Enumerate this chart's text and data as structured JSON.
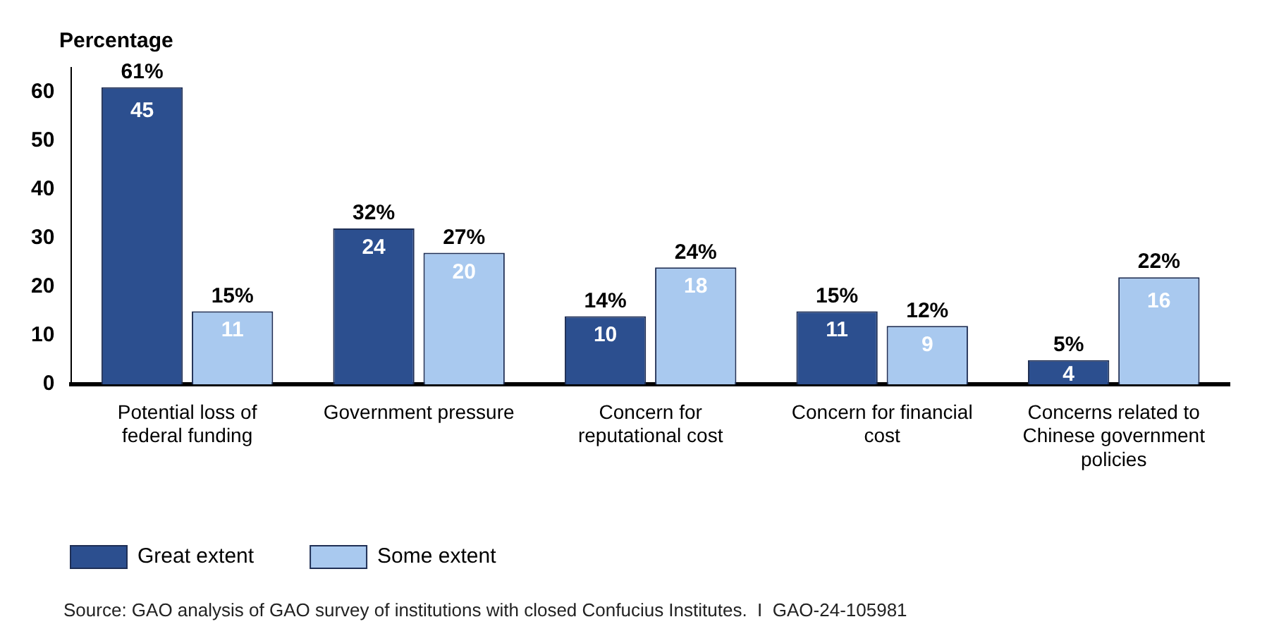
{
  "chart_data": {
    "type": "bar",
    "ylabel": "Percentage",
    "categories": [
      "Potential loss of federal funding",
      "Government pressure",
      "Concern for reputational cost",
      "Concern for financial cost",
      "Concerns related to Chinese government policies"
    ],
    "series": [
      {
        "name": "Great extent",
        "color": "#2c4f8f",
        "values": [
          61,
          32,
          14,
          15,
          5
        ],
        "value_labels": [
          "61%",
          "32%",
          "14%",
          "15%",
          "5%"
        ]
      },
      {
        "name": "Some extent",
        "color": "#a9c9ef",
        "values": [
          15,
          27,
          24,
          12,
          22
        ],
        "value_labels": [
          "15%",
          "27%",
          "24%",
          "12%",
          "22%"
        ]
      }
    ],
    "ylim": [
      0,
      65
    ],
    "yticks": [
      0,
      10,
      20,
      30,
      40,
      50,
      60
    ],
    "grid": false,
    "legend": "bottom left",
    "annotations": [
      {
        "text": "45",
        "x": "Potential loss of federal funding",
        "y": 56
      },
      {
        "text": "11",
        "x": "Potential loss of federal funding",
        "y": 11
      },
      {
        "text": "24",
        "x": "Government pressure",
        "y": 28
      },
      {
        "text": "20",
        "x": "Government pressure",
        "y": 23
      },
      {
        "text": "10",
        "x": "Concern for reputational cost",
        "y": 10
      },
      {
        "text": "18",
        "x": "Concern for reputational cost",
        "y": 20
      },
      {
        "text": "11",
        "x": "Concern for financial cost",
        "y": 11
      },
      {
        "text": "9",
        "x": "Concern for financial cost",
        "y": 8
      },
      {
        "text": "4",
        "x": "Concerns related to Chinese government policies",
        "y": 2
      },
      {
        "text": "16",
        "x": "Concerns related to Chinese government policies",
        "y": 17
      },
      "Source: GAO analysis of GAO survey of institutions with closed Confucius Institutes.  I  GAO-24-105981"
    ]
  }
}
